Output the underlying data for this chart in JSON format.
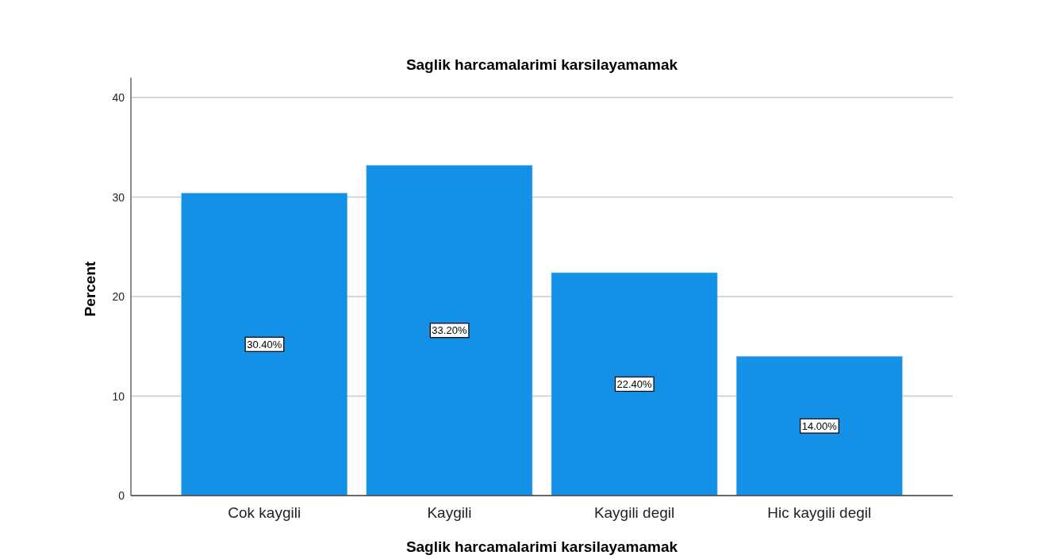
{
  "chart_data": {
    "type": "bar",
    "title": "Saglik harcamalarimi karsilayamamak",
    "xlabel": "Saglik harcamalarimi karsilayamamak",
    "ylabel": "Percent",
    "categories": [
      "Cok kaygili",
      "Kaygili",
      "Kaygili degil",
      "Hic kaygili degil"
    ],
    "values": [
      30.4,
      33.2,
      22.4,
      14.0
    ],
    "value_labels": [
      "30.40%",
      "33.20%",
      "22.40%",
      "14.00%"
    ],
    "color": "#1491e6",
    "ylim": [
      0,
      42
    ],
    "yticks": [
      0,
      10,
      20,
      30,
      40
    ],
    "grid": "y"
  }
}
